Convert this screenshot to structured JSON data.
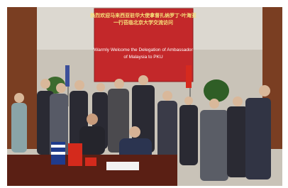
{
  "banner": {
    "title_lines": [
      "热烈欢迎马来西亚驻华大使拿督扎纳罗丁·叶海亚",
      "一行莅临北京大学交流访问"
    ],
    "english_lines": [
      "Warmly Welcome the Delegation of Ambassador",
      "of Malaysia to PKU"
    ]
  }
}
